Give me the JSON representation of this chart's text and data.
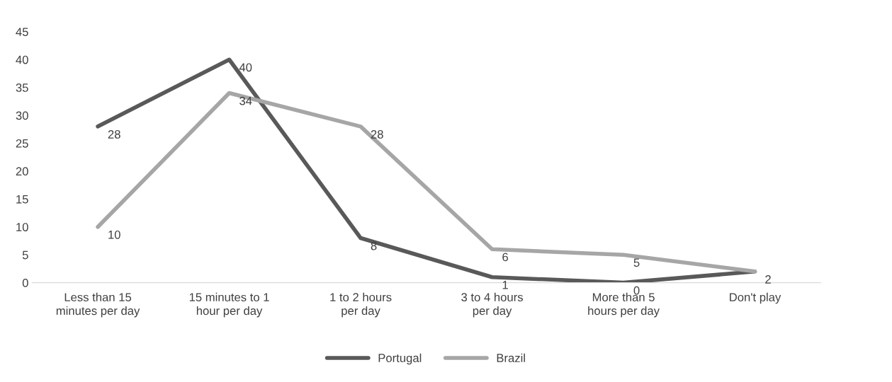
{
  "chart_data": {
    "type": "line",
    "categories": [
      "Less than 15 minutes per day",
      "15 minutes to 1 hour per day",
      "1 to 2 hours per day",
      "3 to 4 hours per day",
      "More than 5 hours per day",
      "Don't play"
    ],
    "series": [
      {
        "name": "Portugal",
        "color": "#595959",
        "values": [
          28,
          40,
          8,
          1,
          0,
          2
        ]
      },
      {
        "name": "Brazil",
        "color": "#a6a6a6",
        "values": [
          10,
          34,
          28,
          6,
          5,
          2
        ],
        "value_labels": [
          "10",
          "34",
          "28",
          "6",
          "5",
          null
        ]
      }
    ],
    "ylim": [
      0,
      45
    ],
    "yticks": [
      0,
      5,
      10,
      15,
      20,
      25,
      30,
      35,
      40,
      45
    ],
    "grid": false,
    "legend": "bottom",
    "data_labels": true,
    "line_style": "solid"
  }
}
